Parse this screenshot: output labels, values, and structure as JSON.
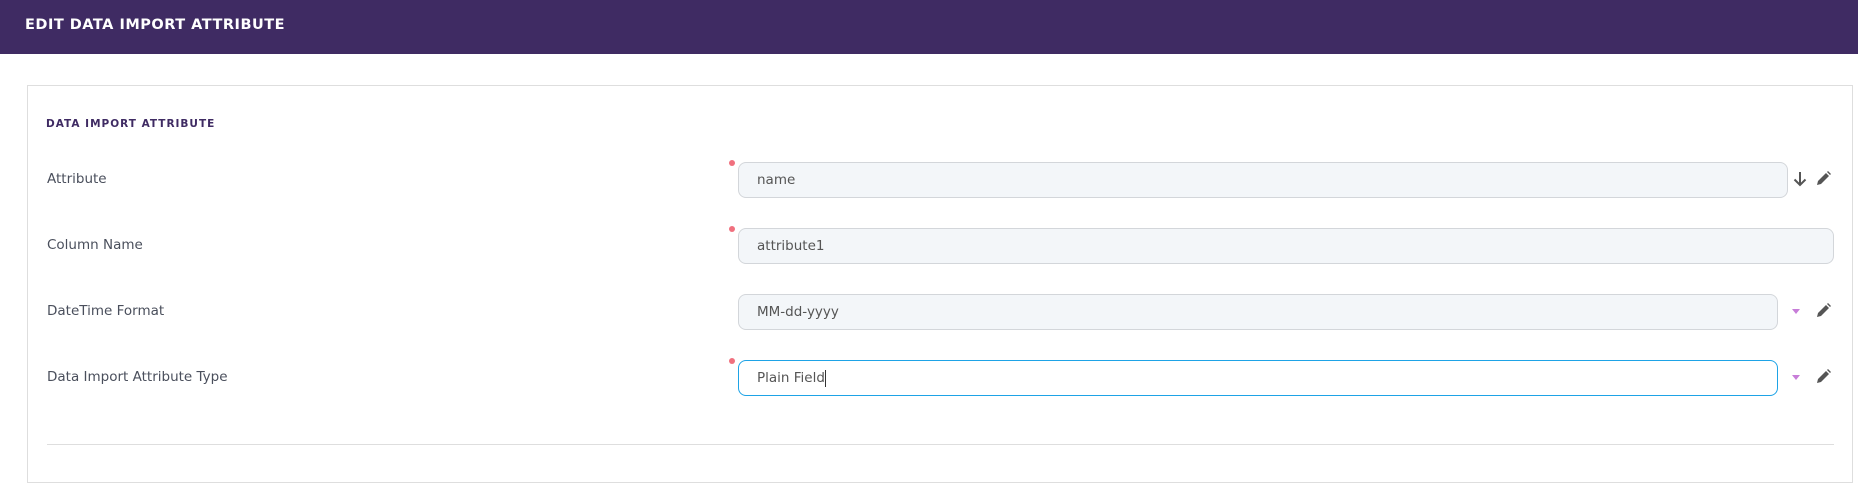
{
  "header": {
    "title": "EDIT DATA IMPORT ATTRIBUTE"
  },
  "section": {
    "title": "DATA IMPORT ATTRIBUTE"
  },
  "fields": [
    {
      "label": "Attribute",
      "value": "name",
      "required": true,
      "icons": [
        "arrow-down-icon",
        "pencil-icon"
      ]
    },
    {
      "label": "Column Name",
      "value": "attribute1",
      "required": true,
      "icons": []
    },
    {
      "label": "DateTime Format",
      "value": "MM-dd-yyyy",
      "required": false,
      "icons": [
        "caret-down-icon",
        "pencil-icon"
      ]
    },
    {
      "label": "Data Import Attribute Type",
      "value": "Plain Field",
      "required": true,
      "focused": true,
      "icons": [
        "caret-down-icon",
        "pencil-icon"
      ]
    }
  ],
  "colors": {
    "header": "#3f2b63",
    "required": "#f0707e",
    "focus": "#1ea3e6",
    "caret": "#c77dd8"
  }
}
